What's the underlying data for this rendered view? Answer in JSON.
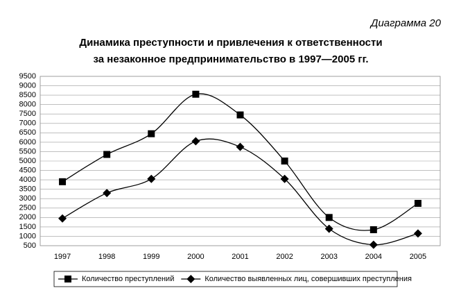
{
  "chart_data": {
    "type": "line",
    "label": "Диаграмма 20",
    "title": [
      "Динамика преступности и привлечения к ответственности",
      "за незаконное предпринимательство в 1997—2005 гг."
    ],
    "categories": [
      "1997",
      "1998",
      "1999",
      "2000",
      "2001",
      "2002",
      "2003",
      "2004",
      "2005"
    ],
    "series": [
      {
        "name": "Количество преступлений",
        "color": "#000000",
        "marker": "square",
        "values": [
          3900,
          5350,
          6450,
          8550,
          7450,
          5000,
          2000,
          1350,
          2750
        ]
      },
      {
        "name": "Количество выявленных лиц, совершивших преступления",
        "color": "#000000",
        "marker": "diamond",
        "values": [
          1950,
          3300,
          4050,
          6050,
          5750,
          4050,
          1400,
          550,
          1150
        ]
      }
    ],
    "ylim": [
      500,
      9500
    ],
    "yticks": [
      500,
      1000,
      1500,
      2000,
      2500,
      3000,
      3500,
      4000,
      4500,
      5000,
      5500,
      6000,
      6500,
      7000,
      7500,
      8000,
      8500,
      9000,
      9500
    ],
    "grid": true,
    "smooth": true
  }
}
